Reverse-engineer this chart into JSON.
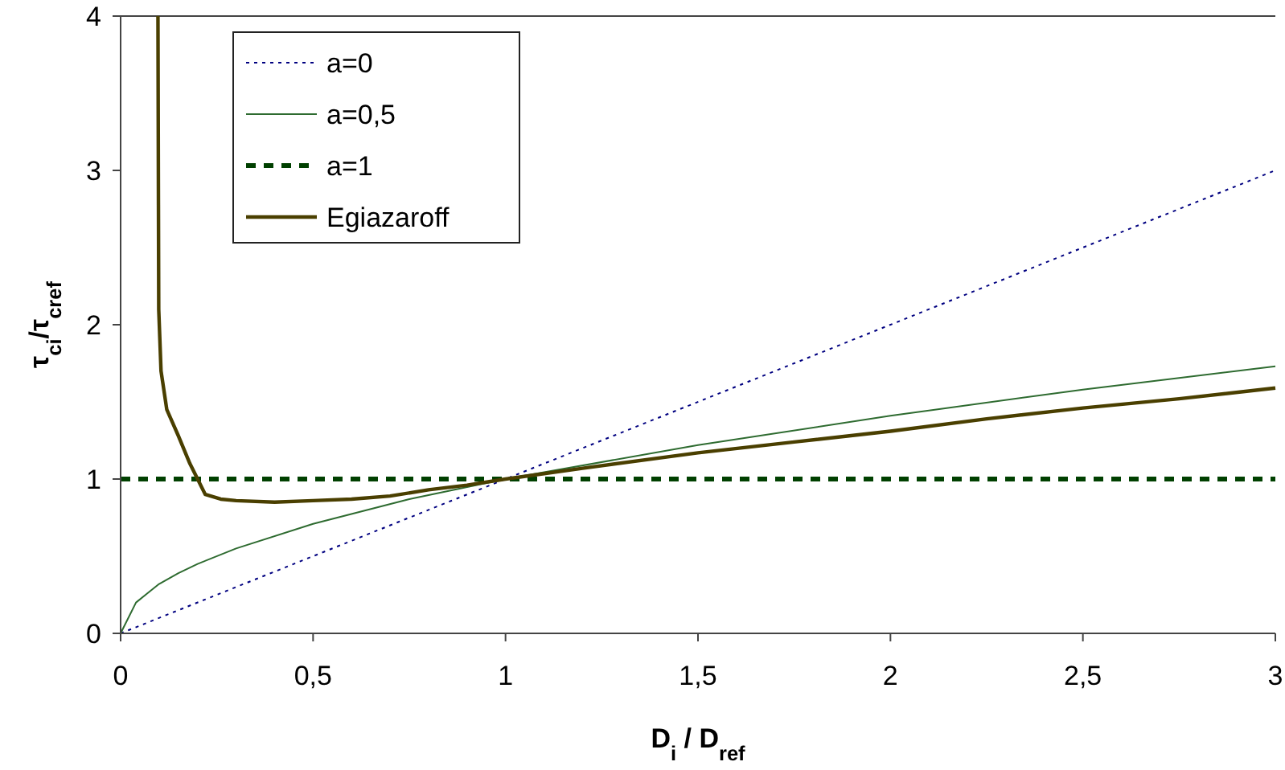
{
  "chart_data": {
    "type": "line",
    "xlabel": "D$_{i}$ / D$_{ref}$",
    "ylabel": "τ$_{ci}$/τ$_{cref}$",
    "xlim": [
      0,
      3
    ],
    "ylim": [
      0,
      4
    ],
    "xticks": [
      0,
      {
        "value": 0.5,
        "label": "0,5"
      },
      1,
      {
        "value": 1.5,
        "label": "1,5"
      },
      2,
      {
        "value": 2.5,
        "label": "2,5"
      },
      3
    ],
    "yticks": [
      0,
      1,
      2,
      3,
      4
    ],
    "grid": false,
    "legend": "top left",
    "marker": "none",
    "series": [
      {
        "name": "a=0",
        "color": "#000080",
        "line_style": "dotted",
        "x": [
          0,
          3
        ],
        "values": [
          0,
          3
        ]
      },
      {
        "name": "a=0,5",
        "color": "#2e6b30",
        "line_style": "solid",
        "x": [
          0,
          0.04,
          0.07,
          0.1,
          0.15,
          0.2,
          0.3,
          0.5,
          0.75,
          1,
          1.5,
          2,
          2.5,
          3
        ],
        "values": [
          0,
          0.2,
          0.26,
          0.32,
          0.39,
          0.45,
          0.55,
          0.71,
          0.87,
          1,
          1.22,
          1.41,
          1.58,
          1.73
        ]
      },
      {
        "name": "a=1",
        "color": "#004000",
        "line_style": "dashed",
        "x": [
          0,
          3
        ],
        "values": [
          1,
          1
        ]
      },
      {
        "name": "Egiazaroff",
        "color": "#4a3f00",
        "line_style": "solid",
        "x": [
          0.097,
          0.099,
          0.105,
          0.12,
          0.15,
          0.18,
          0.2,
          0.22,
          0.26,
          0.3,
          0.4,
          0.5,
          0.6,
          0.7,
          0.8,
          0.9,
          1,
          1.2,
          1.5,
          1.75,
          2,
          2.25,
          2.5,
          2.75,
          3
        ],
        "values": [
          4,
          2.1,
          1.7,
          1.45,
          1.28,
          1.1,
          1,
          0.9,
          0.87,
          0.86,
          0.85,
          0.86,
          0.87,
          0.89,
          0.93,
          0.96,
          1,
          1.07,
          1.17,
          1.24,
          1.31,
          1.39,
          1.46,
          1.52,
          1.59
        ]
      }
    ]
  }
}
